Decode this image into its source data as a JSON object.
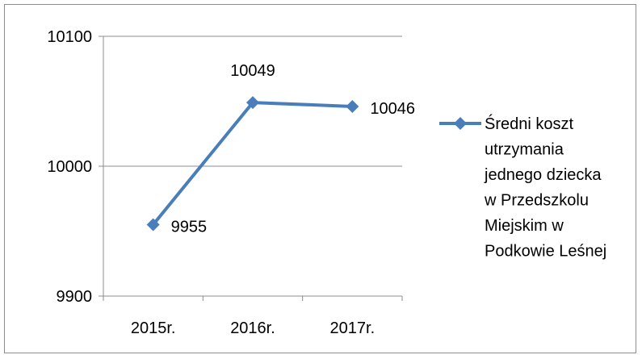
{
  "chart_data": {
    "type": "line",
    "categories": [
      "2015r.",
      "2016r.",
      "2017r."
    ],
    "series": [
      {
        "name": "Średni koszt utrzymania jednego dziecka w Przedszkolu Miejskim w Podkowie Leśnej",
        "values": [
          9955,
          10049,
          10046
        ],
        "color": "#4a7ebb",
        "marker": "diamond"
      }
    ],
    "data_labels": [
      "9955",
      "10049",
      "10046"
    ],
    "yticks": [
      "9900",
      "10000",
      "10100"
    ],
    "ylim": [
      9900,
      10100
    ],
    "grid": true,
    "legend_position": "right",
    "legend_lines": [
      "Średni koszt",
      "utrzymania",
      "jednego dziecka",
      "w Przedszkolu",
      "Miejskim w",
      "Podkowie Leśnej"
    ]
  }
}
